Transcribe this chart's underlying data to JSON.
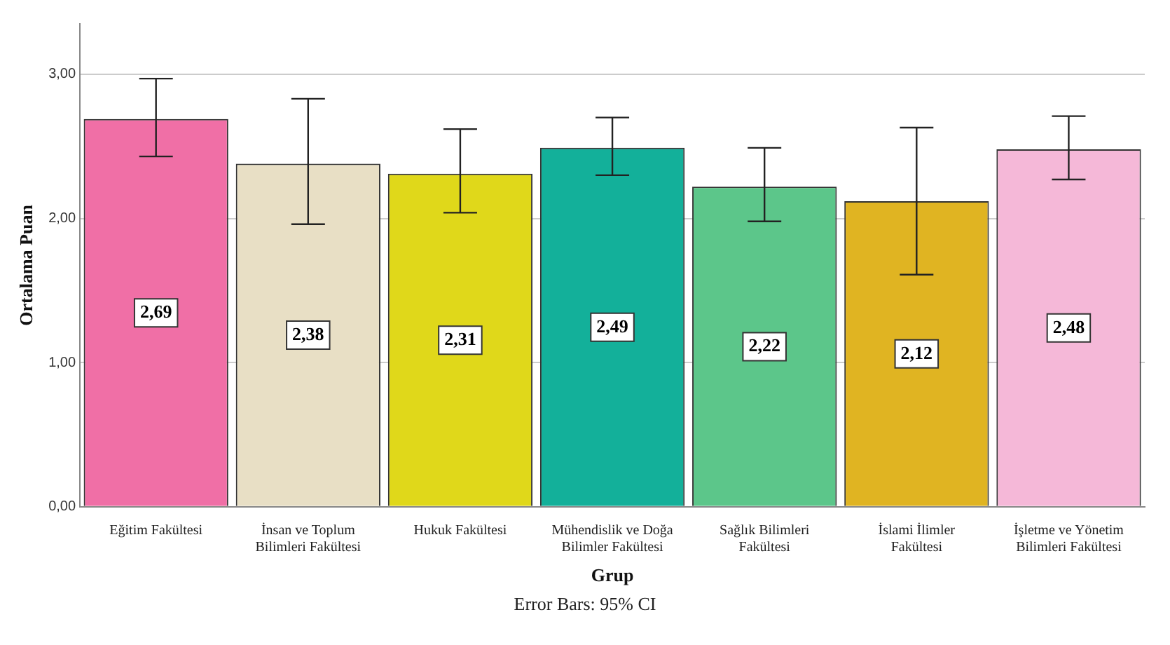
{
  "chart_data": {
    "type": "bar",
    "xlabel": "Grup",
    "ylabel": "Ortalama Puan",
    "categories": [
      "Eğitim Fakültesi",
      "İnsan ve Toplum Bilimleri Fakültesi",
      "Hukuk Fakültesi",
      "Mühendislik ve Doğa Bilimler Fakültesi",
      "Sağlık Bilimleri Fakültesi",
      "İslami İlimler Fakültesi",
      "İşletme ve Yönetim Bilimleri Fakültesi"
    ],
    "values": [
      2.69,
      2.38,
      2.31,
      2.49,
      2.22,
      2.12,
      2.48
    ],
    "value_labels": [
      "2,69",
      "2,38",
      "2,31",
      "2,49",
      "2,22",
      "2,12",
      "2,48"
    ],
    "errors": [
      [
        2.43,
        2.97
      ],
      [
        1.96,
        2.83
      ],
      [
        2.04,
        2.62
      ],
      [
        2.3,
        2.7
      ],
      [
        1.98,
        2.49
      ],
      [
        1.61,
        2.63
      ],
      [
        2.27,
        2.71
      ]
    ],
    "colors": [
      "#f06fa6",
      "#e8dfc5",
      "#e0d81a",
      "#13b09a",
      "#5cc68a",
      "#e0b422",
      "#f5b8d8"
    ],
    "ylim": [
      0,
      3.35
    ],
    "yticks": [
      {
        "value": 0,
        "label": "0,00"
      },
      {
        "value": 1,
        "label": "1,00"
      },
      {
        "value": 2,
        "label": "2,00"
      },
      {
        "value": 3,
        "label": "3,00"
      }
    ],
    "grid": "y",
    "legend": false,
    "annotations": [
      "Error Bars: 95% CI"
    ]
  }
}
